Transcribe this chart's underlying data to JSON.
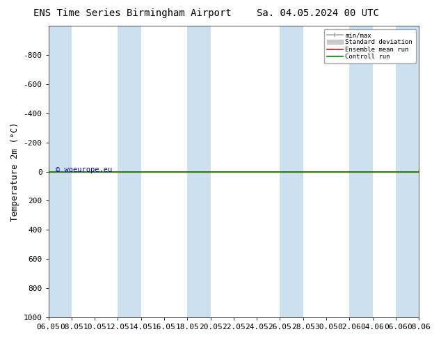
{
  "title_left": "ENS Time Series Birmingham Airport",
  "title_right": "Sa. 04.05.2024 00 UTC",
  "ylabel": "Temperature 2m (°C)",
  "ylim_bottom": 1000,
  "ylim_top": -1000,
  "yticks": [
    -800,
    -600,
    -400,
    -200,
    0,
    200,
    400,
    600,
    800,
    1000
  ],
  "x_tick_labels": [
    "06.05",
    "08.05",
    "10.05",
    "12.05",
    "14.05",
    "16.05",
    "18.05",
    "20.05",
    "22.05",
    "24.05",
    "26.05",
    "28.05",
    "30.05",
    "02.06",
    "04.06",
    "06.06",
    "08.06"
  ],
  "x_tick_positions": [
    0,
    2,
    4,
    6,
    8,
    10,
    12,
    14,
    16,
    18,
    20,
    22,
    24,
    26,
    28,
    30,
    32
  ],
  "stripe_spans": [
    [
      0,
      2
    ],
    [
      6,
      8
    ],
    [
      12,
      14
    ],
    [
      20,
      22
    ],
    [
      26,
      28
    ],
    [
      30,
      32
    ]
  ],
  "green_line_y": 0,
  "red_line_y": 0,
  "watermark": "© woeurope.eu",
  "watermark_color": "#0000cc",
  "bg_color": "#ffffff",
  "plot_bg_color": "#ffffff",
  "stripe_color": "#cce0f0",
  "legend_entries": [
    "min/max",
    "Standard deviation",
    "Ensemble mean run",
    "Controll run"
  ],
  "legend_colors_line": [
    "#aaaaaa",
    "#cccccc",
    "#ff0000",
    "#008800"
  ],
  "title_fontsize": 10,
  "tick_fontsize": 8,
  "ylabel_fontsize": 9,
  "font_family": "monospace"
}
